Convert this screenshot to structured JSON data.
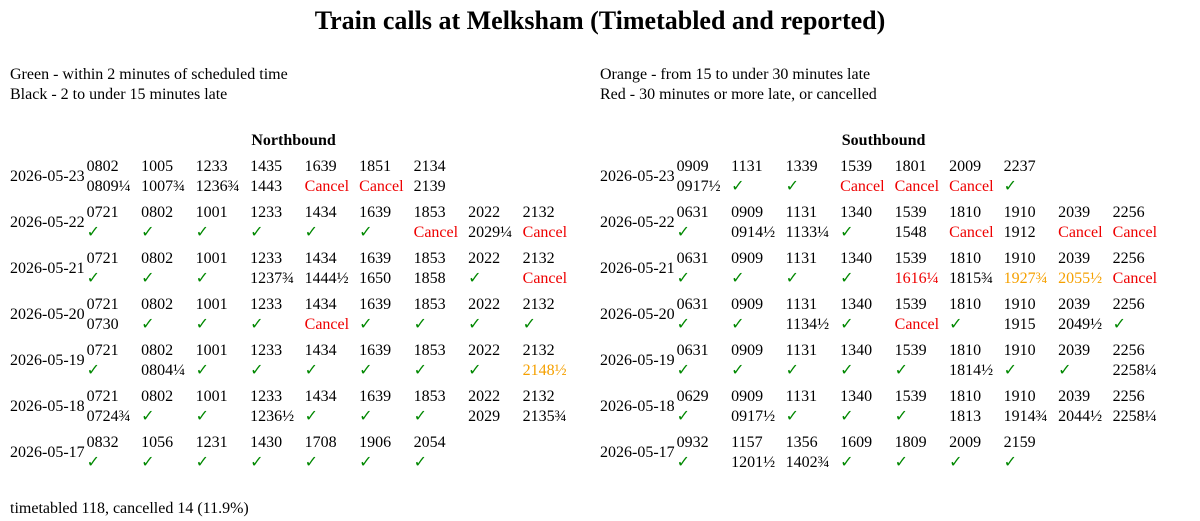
{
  "title": "Train calls at Melksham (Timetabled and reported)",
  "legend": [
    "Green - within 2 minutes of scheduled time",
    "Black - 2 to under 15 minutes late",
    "Orange - from 15 to under 30 minutes late",
    "Red - 30 minutes or more late, or cancelled"
  ],
  "tables": [
    {
      "heading": "Northbound",
      "rows": [
        {
          "date": "2026-05-23",
          "calls": [
            [
              "0802",
              "0809¼",
              "#000"
            ],
            [
              "1005",
              "1007¾",
              "#000"
            ],
            [
              "1233",
              "1236¾",
              "#000"
            ],
            [
              "1435",
              "1443",
              "#000"
            ],
            [
              "1639",
              "Cancel",
              "#e00"
            ],
            [
              "1851",
              "Cancel",
              "#e00"
            ],
            [
              "2134",
              "2139",
              "#000"
            ]
          ]
        },
        {
          "date": "2026-05-22",
          "calls": [
            [
              "0721",
              "✓",
              "#080"
            ],
            [
              "0802",
              "✓",
              "#080"
            ],
            [
              "1001",
              "✓",
              "#080"
            ],
            [
              "1233",
              "✓",
              "#080"
            ],
            [
              "1434",
              "✓",
              "#080"
            ],
            [
              "1639",
              "✓",
              "#080"
            ],
            [
              "1853",
              "Cancel",
              "#e00"
            ],
            [
              "2022",
              "2029¼",
              "#000"
            ],
            [
              "2132",
              "Cancel",
              "#e00"
            ]
          ]
        },
        {
          "date": "2026-05-21",
          "calls": [
            [
              "0721",
              "✓",
              "#080"
            ],
            [
              "0802",
              "✓",
              "#080"
            ],
            [
              "1001",
              "✓",
              "#080"
            ],
            [
              "1233",
              "1237¾",
              "#000"
            ],
            [
              "1434",
              "1444½",
              "#000"
            ],
            [
              "1639",
              "1650",
              "#000"
            ],
            [
              "1853",
              "1858",
              "#000"
            ],
            [
              "2022",
              "✓",
              "#080"
            ],
            [
              "2132",
              "Cancel",
              "#e00"
            ]
          ]
        },
        {
          "date": "2026-05-20",
          "calls": [
            [
              "0721",
              "0730",
              "#000"
            ],
            [
              "0802",
              "✓",
              "#080"
            ],
            [
              "1001",
              "✓",
              "#080"
            ],
            [
              "1233",
              "✓",
              "#080"
            ],
            [
              "1434",
              "Cancel",
              "#e00"
            ],
            [
              "1639",
              "✓",
              "#080"
            ],
            [
              "1853",
              "✓",
              "#080"
            ],
            [
              "2022",
              "✓",
              "#080"
            ],
            [
              "2132",
              "✓",
              "#080"
            ]
          ]
        },
        {
          "date": "2026-05-19",
          "calls": [
            [
              "0721",
              "✓",
              "#080"
            ],
            [
              "0802",
              "0804¼",
              "#000"
            ],
            [
              "1001",
              "✓",
              "#080"
            ],
            [
              "1233",
              "✓",
              "#080"
            ],
            [
              "1434",
              "✓",
              "#080"
            ],
            [
              "1639",
              "✓",
              "#080"
            ],
            [
              "1853",
              "✓",
              "#080"
            ],
            [
              "2022",
              "✓",
              "#080"
            ],
            [
              "2132",
              "2148½",
              "#f5a000"
            ]
          ]
        },
        {
          "date": "2026-05-18",
          "calls": [
            [
              "0721",
              "0724¾",
              "#000"
            ],
            [
              "0802",
              "✓",
              "#080"
            ],
            [
              "1001",
              "✓",
              "#080"
            ],
            [
              "1233",
              "1236½",
              "#000"
            ],
            [
              "1434",
              "✓",
              "#080"
            ],
            [
              "1639",
              "✓",
              "#080"
            ],
            [
              "1853",
              "✓",
              "#080"
            ],
            [
              "2022",
              "2029",
              "#000"
            ],
            [
              "2132",
              "2135¾",
              "#000"
            ]
          ]
        },
        {
          "date": "2026-05-17",
          "calls": [
            [
              "0832",
              "✓",
              "#080"
            ],
            [
              "1056",
              "✓",
              "#080"
            ],
            [
              "1231",
              "✓",
              "#080"
            ],
            [
              "1430",
              "✓",
              "#080"
            ],
            [
              "1708",
              "✓",
              "#080"
            ],
            [
              "1906",
              "✓",
              "#080"
            ],
            [
              "2054",
              "✓",
              "#080"
            ]
          ]
        }
      ]
    },
    {
      "heading": "Southbound",
      "rows": [
        {
          "date": "2026-05-23",
          "calls": [
            [
              "0909",
              "0917½",
              "#000"
            ],
            [
              "1131",
              "✓",
              "#080"
            ],
            [
              "1339",
              "✓",
              "#080"
            ],
            [
              "1539",
              "Cancel",
              "#e00"
            ],
            [
              "1801",
              "Cancel",
              "#e00"
            ],
            [
              "2009",
              "Cancel",
              "#e00"
            ],
            [
              "2237",
              "✓",
              "#080"
            ]
          ]
        },
        {
          "date": "2026-05-22",
          "calls": [
            [
              "0631",
              "✓",
              "#080"
            ],
            [
              "0909",
              "0914½",
              "#000"
            ],
            [
              "1131",
              "1133¼",
              "#000"
            ],
            [
              "1340",
              "✓",
              "#080"
            ],
            [
              "1539",
              "1548",
              "#000"
            ],
            [
              "1810",
              "Cancel",
              "#e00"
            ],
            [
              "1910",
              "1912",
              "#000"
            ],
            [
              "2039",
              "Cancel",
              "#e00"
            ],
            [
              "2256",
              "Cancel",
              "#e00"
            ]
          ]
        },
        {
          "date": "2026-05-21",
          "calls": [
            [
              "0631",
              "✓",
              "#080"
            ],
            [
              "0909",
              "✓",
              "#080"
            ],
            [
              "1131",
              "✓",
              "#080"
            ],
            [
              "1340",
              "✓",
              "#080"
            ],
            [
              "1539",
              "1616¼",
              "#e00"
            ],
            [
              "1810",
              "1815¾",
              "#000"
            ],
            [
              "1910",
              "1927¾",
              "#f5a000"
            ],
            [
              "2039",
              "2055½",
              "#f5a000"
            ],
            [
              "2256",
              "Cancel",
              "#e00"
            ]
          ]
        },
        {
          "date": "2026-05-20",
          "calls": [
            [
              "0631",
              "✓",
              "#080"
            ],
            [
              "0909",
              "✓",
              "#080"
            ],
            [
              "1131",
              "1134½",
              "#000"
            ],
            [
              "1340",
              "✓",
              "#080"
            ],
            [
              "1539",
              "Cancel",
              "#e00"
            ],
            [
              "1810",
              "✓",
              "#080"
            ],
            [
              "1910",
              "1915",
              "#000"
            ],
            [
              "2039",
              "2049½",
              "#000"
            ],
            [
              "2256",
              "✓",
              "#080"
            ]
          ]
        },
        {
          "date": "2026-05-19",
          "calls": [
            [
              "0631",
              "✓",
              "#080"
            ],
            [
              "0909",
              "✓",
              "#080"
            ],
            [
              "1131",
              "✓",
              "#080"
            ],
            [
              "1340",
              "✓",
              "#080"
            ],
            [
              "1539",
              "✓",
              "#080"
            ],
            [
              "1810",
              "1814½",
              "#000"
            ],
            [
              "1910",
              "✓",
              "#080"
            ],
            [
              "2039",
              "✓",
              "#080"
            ],
            [
              "2256",
              "2258¼",
              "#000"
            ]
          ]
        },
        {
          "date": "2026-05-18",
          "calls": [
            [
              "0629",
              "✓",
              "#080"
            ],
            [
              "0909",
              "0917½",
              "#000"
            ],
            [
              "1131",
              "✓",
              "#080"
            ],
            [
              "1340",
              "✓",
              "#080"
            ],
            [
              "1539",
              "✓",
              "#080"
            ],
            [
              "1810",
              "1813",
              "#000"
            ],
            [
              "1910",
              "1914¾",
              "#000"
            ],
            [
              "2039",
              "2044½",
              "#000"
            ],
            [
              "2256",
              "2258¼",
              "#000"
            ]
          ]
        },
        {
          "date": "2026-05-17",
          "calls": [
            [
              "0932",
              "✓",
              "#080"
            ],
            [
              "1157",
              "1201½",
              "#000"
            ],
            [
              "1356",
              "1402¾",
              "#000"
            ],
            [
              "1609",
              "✓",
              "#080"
            ],
            [
              "1809",
              "✓",
              "#080"
            ],
            [
              "2009",
              "✓",
              "#080"
            ],
            [
              "2159",
              "✓",
              "#080"
            ]
          ]
        }
      ]
    }
  ],
  "footer": "timetabled 118, cancelled 14 (11.9%)"
}
